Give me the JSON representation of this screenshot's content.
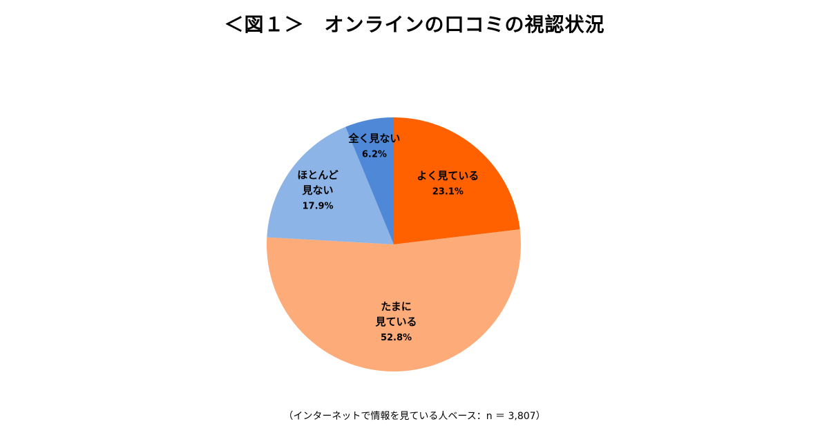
{
  "chart_data": {
    "type": "pie",
    "title": "＜図１＞　オンラインの口コミの視認状況",
    "note": "（インターネットで情報を見ている人ベース：n ＝ 3,807）",
    "start_angle_deg": 0,
    "direction": "clockwise",
    "slices": [
      {
        "label_lines": [
          "よく見ている"
        ],
        "value": 23.1,
        "value_label": "23.1%",
        "color": "#FF6100"
      },
      {
        "label_lines": [
          "たまに",
          "見ている"
        ],
        "value": 52.8,
        "value_label": "52.8%",
        "color": "#FDAB79"
      },
      {
        "label_lines": [
          "ほとんど",
          "見ない"
        ],
        "value": 17.9,
        "value_label": "17.9%",
        "color": "#8CB4E6"
      },
      {
        "label_lines": [
          "全く見ない"
        ],
        "value": 6.2,
        "value_label": "6.2%",
        "color": "#4F88D6"
      }
    ]
  }
}
